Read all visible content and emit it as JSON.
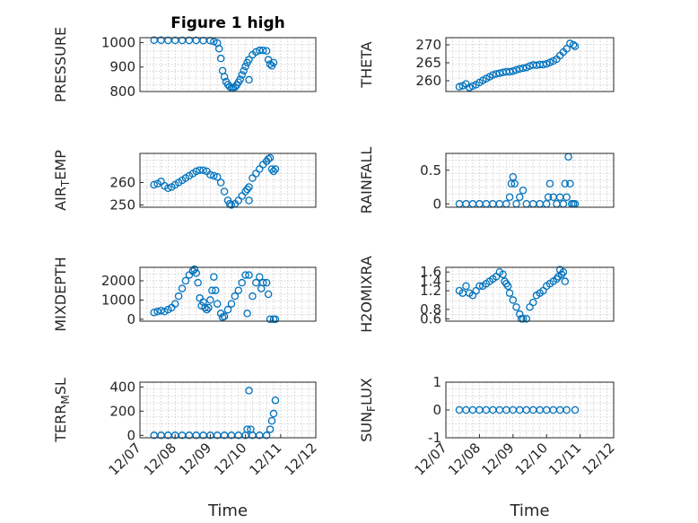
{
  "title": "Figure 1 high",
  "time_label": "Time",
  "chart_data": [
    {
      "type": "scatter",
      "name": "pressure",
      "ylabel": "PRESSURE",
      "title": "Figure 1 high",
      "ylim": [
        800,
        1020
      ],
      "yticks": [
        800,
        900,
        1000
      ],
      "ytick_labels": [
        "800",
        "900",
        "1000"
      ],
      "xlim": [
        0,
        5
      ],
      "xticks": [],
      "xtick_labels": [],
      "points": [
        [
          0.4,
          1010
        ],
        [
          0.6,
          1010
        ],
        [
          0.8,
          1009
        ],
        [
          1.0,
          1009
        ],
        [
          1.2,
          1009
        ],
        [
          1.4,
          1009
        ],
        [
          1.6,
          1009
        ],
        [
          1.8,
          1008
        ],
        [
          2.0,
          1008
        ],
        [
          2.1,
          1004
        ],
        [
          2.2,
          998
        ],
        [
          2.25,
          975
        ],
        [
          2.3,
          935
        ],
        [
          2.35,
          885
        ],
        [
          2.4,
          860
        ],
        [
          2.45,
          840
        ],
        [
          2.5,
          828
        ],
        [
          2.55,
          820
        ],
        [
          2.6,
          815
        ],
        [
          2.65,
          815
        ],
        [
          2.7,
          818
        ],
        [
          2.75,
          826
        ],
        [
          2.8,
          838
        ],
        [
          2.85,
          850
        ],
        [
          2.9,
          868
        ],
        [
          2.95,
          885
        ],
        [
          3.0,
          902
        ],
        [
          3.05,
          918
        ],
        [
          3.1,
          848
        ],
        [
          3.1,
          930
        ],
        [
          3.2,
          950
        ],
        [
          3.3,
          962
        ],
        [
          3.4,
          968
        ],
        [
          3.5,
          968
        ],
        [
          3.6,
          966
        ],
        [
          3.65,
          930
        ],
        [
          3.7,
          912
        ],
        [
          3.75,
          905
        ],
        [
          3.8,
          918
        ]
      ]
    },
    {
      "type": "scatter",
      "name": "theta",
      "ylabel": "THETA",
      "title": "",
      "ylim": [
        257,
        272
      ],
      "yticks": [
        260,
        265,
        270
      ],
      "ytick_labels": [
        "260",
        "265",
        "270"
      ],
      "xlim": [
        0,
        5
      ],
      "xticks": [],
      "xtick_labels": [],
      "points": [
        [
          0.4,
          258.3
        ],
        [
          0.5,
          258.6
        ],
        [
          0.6,
          259.1
        ],
        [
          0.7,
          258.1
        ],
        [
          0.8,
          258.5
        ],
        [
          0.9,
          258.9
        ],
        [
          1.0,
          259.5
        ],
        [
          1.1,
          260.1
        ],
        [
          1.2,
          260.6
        ],
        [
          1.3,
          261.1
        ],
        [
          1.4,
          261.6
        ],
        [
          1.5,
          261.9
        ],
        [
          1.6,
          262.1
        ],
        [
          1.7,
          262.3
        ],
        [
          1.8,
          262.5
        ],
        [
          1.9,
          262.5
        ],
        [
          2.0,
          262.7
        ],
        [
          2.1,
          263.0
        ],
        [
          2.2,
          263.3
        ],
        [
          2.3,
          263.5
        ],
        [
          2.4,
          263.7
        ],
        [
          2.5,
          264.1
        ],
        [
          2.6,
          264.4
        ],
        [
          2.7,
          264.3
        ],
        [
          2.8,
          264.5
        ],
        [
          2.9,
          264.5
        ],
        [
          3.0,
          264.7
        ],
        [
          3.1,
          265.1
        ],
        [
          3.2,
          265.5
        ],
        [
          3.3,
          266.0
        ],
        [
          3.4,
          267.0
        ],
        [
          3.5,
          268.0
        ],
        [
          3.6,
          268.9
        ],
        [
          3.7,
          270.4
        ],
        [
          3.8,
          270.0
        ],
        [
          3.85,
          269.6
        ]
      ]
    },
    {
      "type": "scatter",
      "name": "air_temp",
      "ylabel": "AIR_TEMP",
      "title": "",
      "ylim": [
        249,
        273
      ],
      "yticks": [
        250,
        260
      ],
      "ytick_labels": [
        "250",
        "260"
      ],
      "xlim": [
        0,
        5
      ],
      "xticks": [],
      "xtick_labels": [],
      "points": [
        [
          0.4,
          259
        ],
        [
          0.5,
          259.5
        ],
        [
          0.6,
          260.5
        ],
        [
          0.7,
          258.5
        ],
        [
          0.8,
          257.5
        ],
        [
          0.9,
          258
        ],
        [
          1.0,
          259
        ],
        [
          1.1,
          260
        ],
        [
          1.2,
          261
        ],
        [
          1.3,
          262
        ],
        [
          1.4,
          263
        ],
        [
          1.5,
          264
        ],
        [
          1.6,
          265
        ],
        [
          1.7,
          265.5
        ],
        [
          1.8,
          265.5
        ],
        [
          1.9,
          265
        ],
        [
          2.0,
          263.5
        ],
        [
          2.1,
          263
        ],
        [
          2.2,
          262.5
        ],
        [
          2.3,
          260
        ],
        [
          2.4,
          256
        ],
        [
          2.5,
          252
        ],
        [
          2.55,
          250.5
        ],
        [
          2.6,
          250
        ],
        [
          2.7,
          250.5
        ],
        [
          2.8,
          252
        ],
        [
          2.9,
          254
        ],
        [
          3.0,
          256
        ],
        [
          3.05,
          257
        ],
        [
          3.1,
          252
        ],
        [
          3.1,
          258
        ],
        [
          3.2,
          262
        ],
        [
          3.3,
          264
        ],
        [
          3.4,
          266
        ],
        [
          3.5,
          268
        ],
        [
          3.6,
          269.5
        ],
        [
          3.65,
          270.5
        ],
        [
          3.7,
          271
        ],
        [
          3.75,
          266
        ],
        [
          3.8,
          265
        ],
        [
          3.85,
          266
        ]
      ]
    },
    {
      "type": "scatter",
      "name": "rainfall",
      "ylabel": "RAINFALL",
      "title": "",
      "ylim": [
        -0.05,
        0.75
      ],
      "yticks": [
        0,
        0.5
      ],
      "ytick_labels": [
        "0",
        "0.5"
      ],
      "xlim": [
        0,
        5
      ],
      "xticks": [],
      "xtick_labels": [],
      "points": [
        [
          0.4,
          0
        ],
        [
          0.6,
          0
        ],
        [
          0.8,
          0
        ],
        [
          1.0,
          0
        ],
        [
          1.2,
          0
        ],
        [
          1.4,
          0
        ],
        [
          1.6,
          0
        ],
        [
          1.8,
          0
        ],
        [
          1.9,
          0.1
        ],
        [
          1.95,
          0.3
        ],
        [
          2.0,
          0.4
        ],
        [
          2.05,
          0.3
        ],
        [
          2.1,
          0
        ],
        [
          2.2,
          0.1
        ],
        [
          2.3,
          0.2
        ],
        [
          2.4,
          0
        ],
        [
          2.6,
          0
        ],
        [
          2.8,
          0
        ],
        [
          3.0,
          0
        ],
        [
          3.05,
          0.1
        ],
        [
          3.1,
          0.3
        ],
        [
          3.2,
          0.1
        ],
        [
          3.3,
          0
        ],
        [
          3.4,
          0.1
        ],
        [
          3.5,
          0
        ],
        [
          3.55,
          0.3
        ],
        [
          3.6,
          0.1
        ],
        [
          3.65,
          0.7
        ],
        [
          3.7,
          0.3
        ],
        [
          3.75,
          0
        ],
        [
          3.8,
          0
        ],
        [
          3.85,
          0
        ]
      ]
    },
    {
      "type": "scatter",
      "name": "mixdepth",
      "ylabel": "MIXDEPTH",
      "title": "",
      "ylim": [
        -100,
        2700
      ],
      "yticks": [
        0,
        1000,
        2000
      ],
      "ytick_labels": [
        "0",
        "1000",
        "2000"
      ],
      "xlim": [
        0,
        5
      ],
      "xticks": [],
      "xtick_labels": [],
      "points": [
        [
          0.4,
          350
        ],
        [
          0.5,
          400
        ],
        [
          0.6,
          450
        ],
        [
          0.7,
          400
        ],
        [
          0.8,
          500
        ],
        [
          0.9,
          600
        ],
        [
          1.0,
          800
        ],
        [
          1.1,
          1200
        ],
        [
          1.2,
          1600
        ],
        [
          1.3,
          2000
        ],
        [
          1.4,
          2300
        ],
        [
          1.5,
          2500
        ],
        [
          1.55,
          2600
        ],
        [
          1.6,
          2400
        ],
        [
          1.65,
          1900
        ],
        [
          1.7,
          1100
        ],
        [
          1.75,
          700
        ],
        [
          1.8,
          900
        ],
        [
          1.85,
          600
        ],
        [
          1.9,
          500
        ],
        [
          1.95,
          600
        ],
        [
          2.0,
          1000
        ],
        [
          2.05,
          1500
        ],
        [
          2.1,
          2200
        ],
        [
          2.15,
          1500
        ],
        [
          2.2,
          800
        ],
        [
          2.3,
          300
        ],
        [
          2.35,
          100
        ],
        [
          2.4,
          150
        ],
        [
          2.5,
          500
        ],
        [
          2.6,
          800
        ],
        [
          2.7,
          1200
        ],
        [
          2.8,
          1500
        ],
        [
          2.9,
          1900
        ],
        [
          3.0,
          2300
        ],
        [
          3.05,
          300
        ],
        [
          3.1,
          2300
        ],
        [
          3.2,
          1200
        ],
        [
          3.3,
          1900
        ],
        [
          3.4,
          2200
        ],
        [
          3.45,
          1600
        ],
        [
          3.5,
          1900
        ],
        [
          3.6,
          1900
        ],
        [
          3.65,
          1300
        ],
        [
          3.7,
          0
        ],
        [
          3.8,
          0
        ],
        [
          3.85,
          0
        ]
      ]
    },
    {
      "type": "scatter",
      "name": "h2omixra",
      "ylabel": "H2OMIXRA",
      "title": "",
      "ylim": [
        0.55,
        1.7
      ],
      "yticks": [
        0.6,
        0.8,
        1.2,
        1.4,
        1.6
      ],
      "ytick_labels": [
        "0.6",
        "0.8",
        "1.2",
        "1.4",
        "1.6"
      ],
      "xlim": [
        0,
        5
      ],
      "xticks": [],
      "xtick_labels": [],
      "points": [
        [
          0.4,
          1.2
        ],
        [
          0.5,
          1.15
        ],
        [
          0.6,
          1.3
        ],
        [
          0.7,
          1.15
        ],
        [
          0.8,
          1.1
        ],
        [
          0.9,
          1.2
        ],
        [
          1.0,
          1.3
        ],
        [
          1.1,
          1.3
        ],
        [
          1.2,
          1.35
        ],
        [
          1.3,
          1.4
        ],
        [
          1.4,
          1.45
        ],
        [
          1.5,
          1.5
        ],
        [
          1.6,
          1.6
        ],
        [
          1.7,
          1.55
        ],
        [
          1.75,
          1.4
        ],
        [
          1.8,
          1.35
        ],
        [
          1.85,
          1.3
        ],
        [
          1.9,
          1.15
        ],
        [
          2.0,
          1.0
        ],
        [
          2.1,
          0.85
        ],
        [
          2.2,
          0.7
        ],
        [
          2.25,
          0.6
        ],
        [
          2.3,
          0.6
        ],
        [
          2.4,
          0.6
        ],
        [
          2.5,
          0.85
        ],
        [
          2.6,
          0.95
        ],
        [
          2.7,
          1.1
        ],
        [
          2.8,
          1.15
        ],
        [
          2.9,
          1.2
        ],
        [
          3.0,
          1.3
        ],
        [
          3.1,
          1.35
        ],
        [
          3.2,
          1.4
        ],
        [
          3.3,
          1.45
        ],
        [
          3.35,
          1.5
        ],
        [
          3.4,
          1.65
        ],
        [
          3.45,
          1.55
        ],
        [
          3.5,
          1.6
        ],
        [
          3.55,
          1.4
        ]
      ]
    },
    {
      "type": "scatter",
      "name": "terr_msl",
      "ylabel": "TERR_MSL",
      "title": "",
      "ylim": [
        -20,
        440
      ],
      "yticks": [
        0,
        200,
        400
      ],
      "ytick_labels": [
        "0",
        "200",
        "400"
      ],
      "xlim": [
        0,
        5
      ],
      "xticks": [
        0,
        1,
        2,
        3,
        4,
        5
      ],
      "xtick_labels": [
        "12/07",
        "12/08",
        "12/09",
        "12/10",
        "12/11",
        "12/12"
      ],
      "points": [
        [
          0.4,
          0
        ],
        [
          0.6,
          0
        ],
        [
          0.8,
          0
        ],
        [
          1.0,
          0
        ],
        [
          1.2,
          0
        ],
        [
          1.4,
          0
        ],
        [
          1.6,
          0
        ],
        [
          1.8,
          0
        ],
        [
          2.0,
          0
        ],
        [
          2.2,
          0
        ],
        [
          2.4,
          0
        ],
        [
          2.6,
          0
        ],
        [
          2.8,
          0
        ],
        [
          3.0,
          0
        ],
        [
          3.05,
          50
        ],
        [
          3.1,
          370
        ],
        [
          3.15,
          50
        ],
        [
          3.2,
          0
        ],
        [
          3.4,
          0
        ],
        [
          3.6,
          0
        ],
        [
          3.7,
          50
        ],
        [
          3.75,
          120
        ],
        [
          3.8,
          180
        ],
        [
          3.85,
          290
        ]
      ]
    },
    {
      "type": "scatter",
      "name": "sun_flux",
      "ylabel": "SUN_FLUX",
      "title": "",
      "ylim": [
        -1,
        1
      ],
      "yticks": [
        -1,
        0,
        1
      ],
      "ytick_labels": [
        "-1",
        "0",
        "1"
      ],
      "xlim": [
        0,
        5
      ],
      "xticks": [
        0,
        1,
        2,
        3,
        4,
        5
      ],
      "xtick_labels": [
        "12/07",
        "12/08",
        "12/09",
        "12/10",
        "12/11",
        "12/12"
      ],
      "points": [
        [
          0.4,
          0
        ],
        [
          0.6,
          0
        ],
        [
          0.8,
          0
        ],
        [
          1.0,
          0
        ],
        [
          1.2,
          0
        ],
        [
          1.4,
          0
        ],
        [
          1.6,
          0
        ],
        [
          1.8,
          0
        ],
        [
          2.0,
          0
        ],
        [
          2.2,
          0
        ],
        [
          2.4,
          0
        ],
        [
          2.6,
          0
        ],
        [
          2.8,
          0
        ],
        [
          3.0,
          0
        ],
        [
          3.2,
          0
        ],
        [
          3.4,
          0
        ],
        [
          3.6,
          0
        ],
        [
          3.85,
          0
        ]
      ]
    }
  ]
}
